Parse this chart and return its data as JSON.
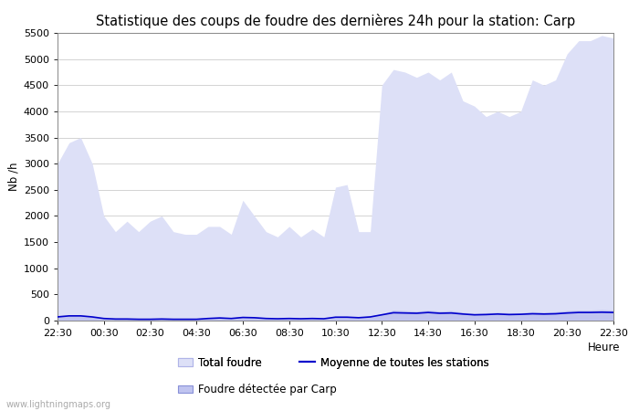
{
  "title": "Statistique des coups de foudre des dernières 24h pour la station: Carp",
  "xlabel": "Heure",
  "ylabel": "Nb /h",
  "watermark": "www.lightningmaps.org",
  "xlim_start": 0,
  "xlim_end": 48,
  "ylim": [
    0,
    5500
  ],
  "yticks": [
    0,
    500,
    1000,
    1500,
    2000,
    2500,
    3000,
    3500,
    4000,
    4500,
    5000,
    5500
  ],
  "xtick_labels": [
    "22:30",
    "00:30",
    "02:30",
    "04:30",
    "06:30",
    "08:30",
    "10:30",
    "12:30",
    "14:30",
    "16:30",
    "18:30",
    "20:30",
    "22:30"
  ],
  "total_foudre_color": "#dde0f7",
  "total_foudre_edge": "#b0b4e8",
  "foudre_carp_color": "#c0c4f0",
  "foudre_carp_edge": "#8890d8",
  "moyenne_color": "#0000cc",
  "background_color": "#ffffff",
  "title_fontsize": 10.5,
  "tick_fontsize": 8,
  "label_fontsize": 8.5,
  "total_foudre": [
    3000,
    3400,
    3500,
    3000,
    2000,
    1700,
    1900,
    1700,
    1900,
    2000,
    1700,
    1650,
    1650,
    1800,
    1800,
    1650,
    2300,
    2000,
    1700,
    1600,
    1800,
    1600,
    1750,
    1600,
    2550,
    2600,
    1700,
    1700,
    4500,
    4800,
    4750,
    4650,
    4750,
    4600,
    4750,
    4200,
    4100,
    3900,
    4000,
    3900,
    4000,
    4600,
    4500,
    4600,
    5100,
    5350,
    5350,
    5450,
    5400
  ],
  "foudre_carp": [
    100,
    100,
    110,
    80,
    50,
    40,
    40,
    30,
    30,
    40,
    30,
    30,
    30,
    60,
    70,
    50,
    80,
    70,
    50,
    40,
    50,
    40,
    50,
    40,
    80,
    80,
    70,
    90,
    130,
    200,
    190,
    180,
    200,
    180,
    190,
    160,
    140,
    150,
    160,
    150,
    150,
    170,
    160,
    170,
    190,
    200,
    200,
    210,
    200
  ],
  "moyenne": [
    70,
    90,
    90,
    70,
    40,
    30,
    30,
    25,
    25,
    30,
    25,
    25,
    25,
    40,
    50,
    40,
    60,
    55,
    40,
    35,
    40,
    35,
    40,
    35,
    65,
    65,
    55,
    70,
    110,
    150,
    145,
    140,
    155,
    140,
    145,
    125,
    110,
    115,
    125,
    115,
    120,
    130,
    125,
    130,
    145,
    155,
    155,
    160,
    155
  ]
}
